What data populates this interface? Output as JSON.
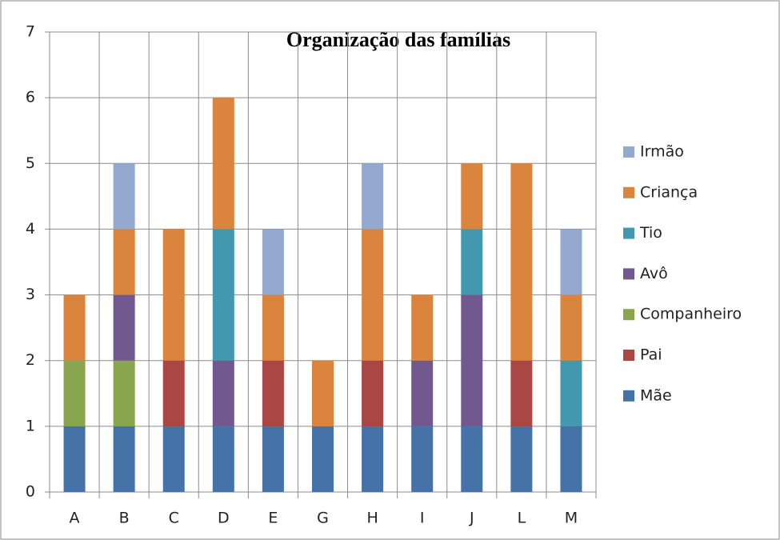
{
  "chart_data": {
    "type": "stacked_bar",
    "title": "Organização das famílias",
    "categories": [
      "A",
      "B",
      "C",
      "D",
      "E",
      "G",
      "H",
      "I",
      "J",
      "L",
      "M"
    ],
    "series": [
      {
        "name": "Mãe",
        "color": "#4572a7",
        "values": [
          1,
          1,
          1,
          1,
          1,
          1,
          1,
          1,
          1,
          1,
          1
        ]
      },
      {
        "name": "Pai",
        "color": "#aa4643",
        "values": [
          0,
          0,
          1,
          0,
          1,
          0,
          1,
          0,
          0,
          1,
          0
        ]
      },
      {
        "name": "Companheiro",
        "color": "#89a54e",
        "values": [
          1,
          1,
          0,
          0,
          0,
          0,
          0,
          0,
          0,
          0,
          0
        ]
      },
      {
        "name": "Avô",
        "color": "#71588f",
        "values": [
          0,
          1,
          0,
          1,
          0,
          0,
          0,
          1,
          2,
          0,
          0
        ]
      },
      {
        "name": "Tio",
        "color": "#4198af",
        "values": [
          0,
          0,
          0,
          2,
          0,
          0,
          0,
          0,
          1,
          0,
          1
        ]
      },
      {
        "name": "Criança",
        "color": "#db843d",
        "values": [
          1,
          1,
          2,
          2,
          1,
          1,
          2,
          1,
          1,
          3,
          1
        ]
      },
      {
        "name": "Irmão",
        "color": "#93a9cf",
        "values": [
          0,
          1,
          0,
          0,
          1,
          0,
          1,
          0,
          0,
          0,
          1
        ]
      }
    ],
    "ylim": [
      0,
      7
    ],
    "yticks": [
      0,
      1,
      2,
      3,
      4,
      5,
      6,
      7
    ],
    "grid": true,
    "legend": "right"
  }
}
